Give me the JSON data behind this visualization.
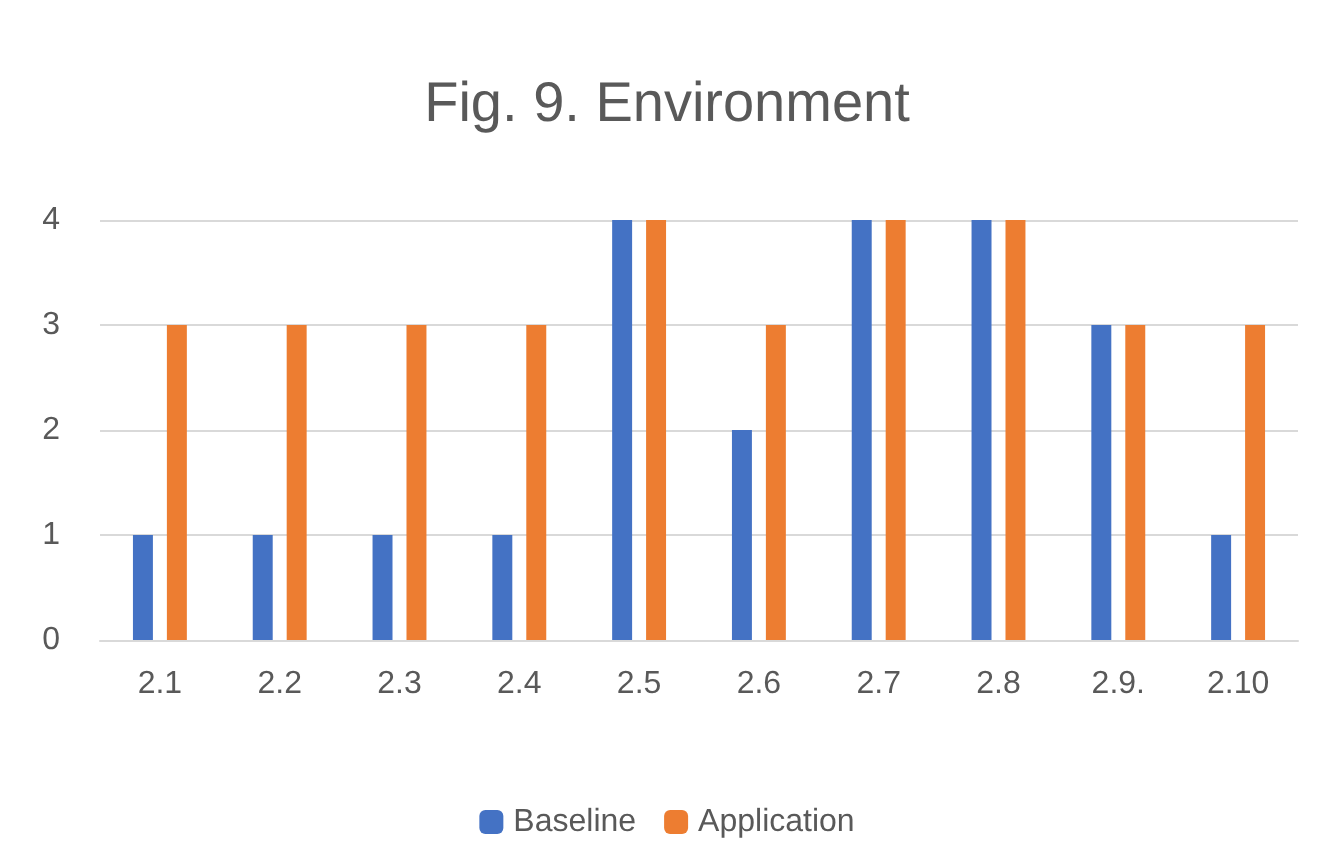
{
  "chart_data": {
    "type": "bar",
    "title": "Fig. 9. Environment",
    "categories": [
      "2.1",
      "2.2",
      "2.3",
      "2.4",
      "2.5",
      "2.6",
      "2.7",
      "2.8",
      "2.9.",
      "2.10"
    ],
    "series": [
      {
        "name": "Baseline",
        "color": "#4472c4",
        "values": [
          1,
          1,
          1,
          1,
          4,
          2,
          4,
          4,
          3,
          1
        ]
      },
      {
        "name": "Application",
        "color": "#ed7d31",
        "values": [
          3,
          3,
          3,
          3,
          4,
          3,
          4,
          4,
          3,
          3
        ]
      }
    ],
    "ylim": [
      0,
      4
    ],
    "yticks": [
      0,
      1,
      2,
      3,
      4
    ],
    "grid": "y",
    "legend": "bottom"
  }
}
